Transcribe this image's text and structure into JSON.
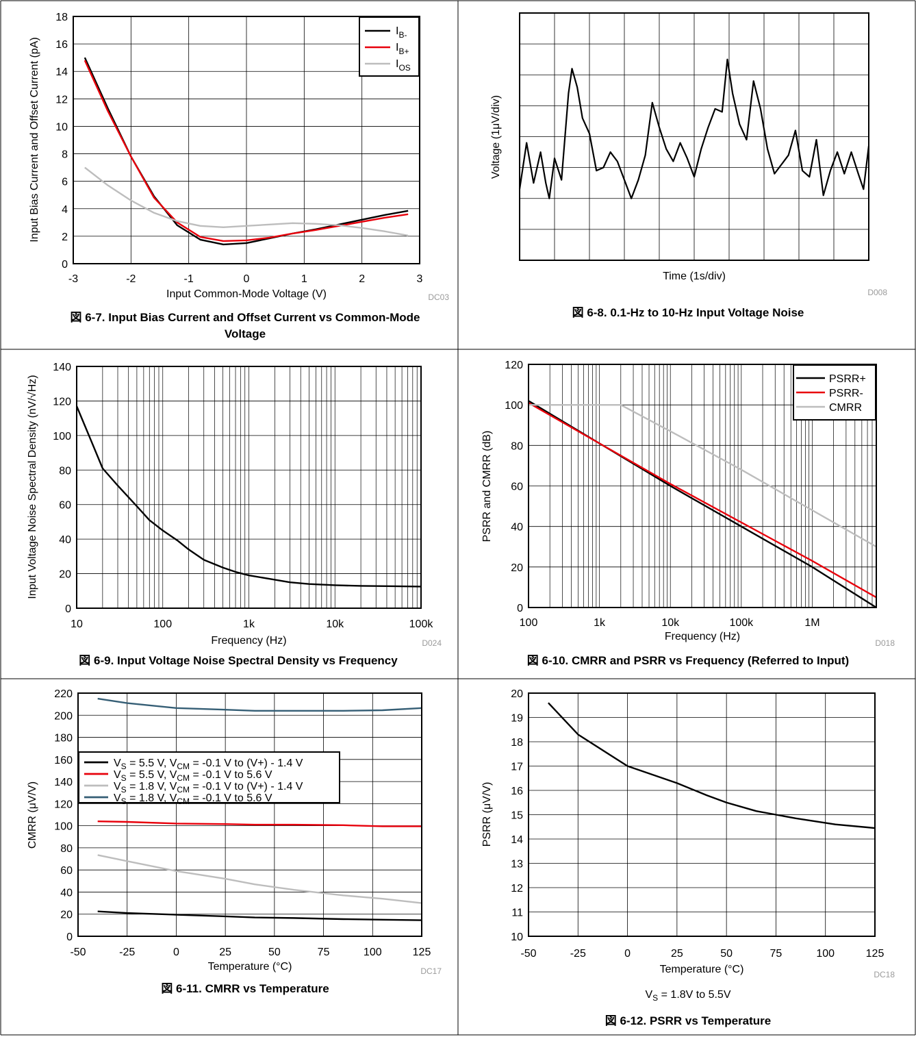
{
  "chart_data": [
    {
      "id": "fig67",
      "type": "line",
      "title": "",
      "caption": "図 6-7. Input Bias Current and Offset Current vs Common-Mode Voltage",
      "caption_lines": [
        "図 6-7. Input Bias Current and Offset Current vs Common-Mode",
        "Voltage"
      ],
      "xlabel": "Input Common-Mode Voltage (V)",
      "ylabel": "Input Bias Current and Offset Current (pA)",
      "code": "DC03",
      "xlim": [
        -3,
        3
      ],
      "ylim": [
        0,
        18
      ],
      "xticks": [
        -3,
        -2,
        -1,
        0,
        1,
        2,
        3
      ],
      "xtick_labels": [
        "-3",
        "-2",
        "-1",
        "0",
        "1",
        "2",
        "3"
      ],
      "yticks": [
        0,
        2,
        4,
        6,
        8,
        10,
        12,
        14,
        16,
        18
      ],
      "ytick_labels": [
        "0",
        "2",
        "4",
        "6",
        "8",
        "10",
        "12",
        "14",
        "16",
        "18"
      ],
      "grid": true,
      "legend_position": "top-right",
      "series": [
        {
          "name": "I",
          "sub": "B-",
          "color": "#000000",
          "x": [
            -2.8,
            -2.4,
            -2.0,
            -1.6,
            -1.2,
            -0.8,
            -0.4,
            0.0,
            0.4,
            0.8,
            1.2,
            1.6,
            2.0,
            2.4,
            2.8
          ],
          "y": [
            15.0,
            11.3,
            7.8,
            4.9,
            2.8,
            1.75,
            1.4,
            1.5,
            1.85,
            2.2,
            2.5,
            2.85,
            3.2,
            3.55,
            3.85
          ]
        },
        {
          "name": "I",
          "sub": "B+",
          "color": "#e8000b",
          "x": [
            -2.8,
            -2.4,
            -2.0,
            -1.6,
            -1.2,
            -0.8,
            -0.4,
            0.0,
            0.4,
            0.8,
            1.2,
            1.6,
            2.0,
            2.4,
            2.8
          ],
          "y": [
            14.8,
            11.1,
            7.8,
            4.8,
            3.0,
            1.95,
            1.65,
            1.7,
            1.9,
            2.2,
            2.45,
            2.75,
            3.05,
            3.35,
            3.6
          ]
        },
        {
          "name": "I",
          "sub": "OS",
          "color": "#bdbdbd",
          "x": [
            -2.8,
            -2.4,
            -2.0,
            -1.6,
            -1.2,
            -0.8,
            -0.4,
            0.0,
            0.4,
            0.8,
            1.2,
            1.6,
            2.0,
            2.4,
            2.8
          ],
          "y": [
            7.0,
            5.7,
            4.6,
            3.7,
            3.1,
            2.75,
            2.65,
            2.75,
            2.85,
            2.95,
            2.9,
            2.8,
            2.6,
            2.35,
            2.05
          ]
        }
      ]
    },
    {
      "id": "fig68",
      "type": "line",
      "title": "",
      "caption": "図 6-8. 0.1-Hz to 10-Hz Input Voltage Noise",
      "xlabel": "Time (1s/div)",
      "ylabel": "Voltage (1μV/div)",
      "code": "D008",
      "xlim": [
        0,
        10
      ],
      "ylim": [
        0,
        8
      ],
      "grid": true,
      "series": [
        {
          "name": "",
          "color": "#000000",
          "x": [
            0,
            0.2,
            0.4,
            0.6,
            0.75,
            0.85,
            1.0,
            1.2,
            1.4,
            1.5,
            1.65,
            1.8,
            2.0,
            2.2,
            2.4,
            2.6,
            2.8,
            3.0,
            3.2,
            3.4,
            3.6,
            3.8,
            4.0,
            4.2,
            4.4,
            4.6,
            4.8,
            5.0,
            5.2,
            5.4,
            5.6,
            5.8,
            5.95,
            6.1,
            6.3,
            6.5,
            6.7,
            6.9,
            7.1,
            7.3,
            7.5,
            7.7,
            7.9,
            8.1,
            8.3,
            8.5,
            8.7,
            8.9,
            9.1,
            9.3,
            9.5,
            9.7,
            9.85,
            10.0
          ],
          "y": [
            2.3,
            3.8,
            2.5,
            3.5,
            2.5,
            2.0,
            3.3,
            2.6,
            5.4,
            6.2,
            5.6,
            4.6,
            4.1,
            2.9,
            3.0,
            3.5,
            3.2,
            2.6,
            2.0,
            2.6,
            3.4,
            5.1,
            4.3,
            3.6,
            3.2,
            3.8,
            3.3,
            2.7,
            3.6,
            4.3,
            4.9,
            4.8,
            6.5,
            5.4,
            4.4,
            3.9,
            5.8,
            4.9,
            3.6,
            2.8,
            3.1,
            3.4,
            4.2,
            2.9,
            2.7,
            3.9,
            2.1,
            2.9,
            3.5,
            2.8,
            3.5,
            2.8,
            2.3,
            3.7
          ]
        }
      ]
    },
    {
      "id": "fig69",
      "type": "line",
      "title": "",
      "caption": "図 6-9. Input Voltage Noise Spectral Density vs Frequency",
      "xlabel": "Frequency (Hz)",
      "ylabel": "Input Voltage Noise Spectral Density (nV/√Hz)",
      "code": "D024",
      "xscale": "log",
      "xlim": [
        10,
        100000
      ],
      "ylim": [
        0,
        140
      ],
      "xticks": [
        10,
        100,
        1000,
        10000,
        100000
      ],
      "xtick_labels": [
        "10",
        "100",
        "1k",
        "10k",
        "100k"
      ],
      "yticks": [
        0,
        20,
        40,
        60,
        80,
        100,
        120,
        140
      ],
      "ytick_labels": [
        "0",
        "20",
        "40",
        "60",
        "80",
        "100",
        "120",
        "140"
      ],
      "grid": true,
      "series": [
        {
          "name": "",
          "color": "#000000",
          "x": [
            10,
            15,
            20,
            30,
            50,
            70,
            100,
            150,
            200,
            300,
            500,
            700,
            1000,
            2000,
            3000,
            5000,
            10000,
            20000,
            50000,
            100000
          ],
          "y": [
            117,
            96,
            81,
            71,
            59,
            51,
            45,
            39,
            34,
            28,
            23.5,
            21,
            19,
            16.5,
            15,
            14,
            13.3,
            12.9,
            12.7,
            12.5
          ]
        }
      ]
    },
    {
      "id": "fig610",
      "type": "line",
      "title": "",
      "caption": "図 6-10. CMRR and PSRR vs Frequency (Referred to Input)",
      "xlabel": "Frequency (Hz)",
      "ylabel": "PSRR and CMRR (dB)",
      "code": "D018",
      "xscale": "log",
      "xlim": [
        100,
        8000000
      ],
      "ylim": [
        0,
        120
      ],
      "xticks": [
        100,
        1000,
        10000,
        100000,
        1000000
      ],
      "xtick_labels": [
        "100",
        "1k",
        "10k",
        "100k",
        "1M"
      ],
      "yticks": [
        0,
        20,
        40,
        60,
        80,
        100,
        120
      ],
      "ytick_labels": [
        "0",
        "20",
        "40",
        "60",
        "80",
        "100",
        "120"
      ],
      "grid": true,
      "legend_position": "top-right",
      "series": [
        {
          "name": "PSRR+",
          "color": "#000000",
          "x": [
            100,
            1000,
            10000,
            100000,
            1000000,
            8000000
          ],
          "y": [
            102,
            81,
            60,
            40,
            20,
            0
          ]
        },
        {
          "name": "PSRR-",
          "color": "#e8000b",
          "x": [
            100,
            1000,
            10000,
            100000,
            1000000,
            8000000
          ],
          "y": [
            101,
            81,
            61,
            42,
            23,
            5
          ]
        },
        {
          "name": "CMRR",
          "color": "#bdbdbd",
          "x": [
            100,
            1000,
            2000,
            10000,
            100000,
            1000000,
            8000000
          ],
          "y": [
            100,
            100,
            100,
            87,
            68,
            48,
            30
          ]
        }
      ]
    },
    {
      "id": "fig611",
      "type": "line",
      "title": "",
      "caption": "図 6-11. CMRR vs Temperature",
      "xlabel": "Temperature (°C)",
      "ylabel": "CMRR (μV/V)",
      "code": "DC17",
      "xlim": [
        -50,
        125
      ],
      "ylim": [
        0,
        220
      ],
      "xticks": [
        -50,
        -25,
        0,
        25,
        50,
        75,
        100,
        125
      ],
      "xtick_labels": [
        "-50",
        "-25",
        "0",
        "25",
        "50",
        "75",
        "100",
        "125"
      ],
      "yticks": [
        0,
        20,
        40,
        60,
        80,
        100,
        120,
        140,
        160,
        180,
        200,
        220
      ],
      "ytick_labels": [
        "0",
        "20",
        "40",
        "60",
        "80",
        "100",
        "120",
        "140",
        "160",
        "180",
        "200",
        "220"
      ],
      "grid": true,
      "legend_position": "upper-left",
      "series": [
        {
          "name": "V",
          "legend_parts": [
            "V",
            "S",
            " = 5.5 V, V",
            "CM",
            " = -0.1 V to (V+) - 1.4 V"
          ],
          "color": "#000000",
          "x": [
            -40,
            -25,
            0,
            25,
            40,
            60,
            85,
            105,
            125
          ],
          "y": [
            22.5,
            21,
            19.5,
            18,
            17,
            16.5,
            15.5,
            15,
            14.5
          ]
        },
        {
          "name": "V",
          "legend_parts": [
            "V",
            "S",
            " = 5.5 V, V",
            "CM",
            " = -0.1 V to 5.6 V"
          ],
          "color": "#e8000b",
          "x": [
            -40,
            -25,
            0,
            25,
            40,
            60,
            85,
            105,
            125
          ],
          "y": [
            104,
            103.5,
            102,
            101.5,
            101,
            101,
            100.5,
            99.5,
            99.5
          ]
        },
        {
          "name": "V",
          "legend_parts": [
            "V",
            "S",
            " = 1.8 V, V",
            "CM",
            " = -0.1 V to (V+) - 1.4 V"
          ],
          "color": "#bdbdbd",
          "x": [
            -40,
            -25,
            0,
            25,
            40,
            60,
            85,
            105,
            125
          ],
          "y": [
            73.5,
            68,
            59,
            52,
            47,
            42,
            37,
            34,
            30
          ]
        },
        {
          "name": "V",
          "legend_parts": [
            "V",
            "S",
            " = 1.8 V, V",
            "CM",
            " = -0.1 V to 5.6 V"
          ],
          "color": "#355e75",
          "x": [
            -40,
            -25,
            0,
            25,
            40,
            60,
            85,
            105,
            125
          ],
          "y": [
            215,
            211,
            206.5,
            205,
            204,
            204,
            204,
            204.5,
            206.5
          ]
        }
      ]
    },
    {
      "id": "fig612",
      "type": "line",
      "title": "",
      "caption": "図 6-12. PSRR vs Temperature",
      "xlabel": "Temperature (°C)",
      "ylabel": "PSRR (μV/V)",
      "code": "DC18",
      "note_parts": [
        "V",
        "S",
        " = 1.8V to 5.5V"
      ],
      "xlim": [
        -50,
        125
      ],
      "ylim": [
        10,
        20
      ],
      "xticks": [
        -50,
        -25,
        0,
        25,
        50,
        75,
        100,
        125
      ],
      "xtick_labels": [
        "-50",
        "-25",
        "0",
        "25",
        "50",
        "75",
        "100",
        "125"
      ],
      "yticks": [
        10,
        11,
        12,
        13,
        14,
        15,
        16,
        17,
        18,
        19,
        20
      ],
      "ytick_labels": [
        "10",
        "11",
        "12",
        "13",
        "14",
        "15",
        "16",
        "17",
        "18",
        "19",
        "20"
      ],
      "grid": true,
      "series": [
        {
          "name": "",
          "color": "#000000",
          "x": [
            -40,
            -25,
            0,
            25,
            40,
            50,
            65,
            75,
            85,
            105,
            125
          ],
          "y": [
            19.6,
            18.3,
            17.0,
            16.3,
            15.8,
            15.5,
            15.15,
            15.0,
            14.85,
            14.6,
            14.45
          ]
        }
      ]
    }
  ]
}
